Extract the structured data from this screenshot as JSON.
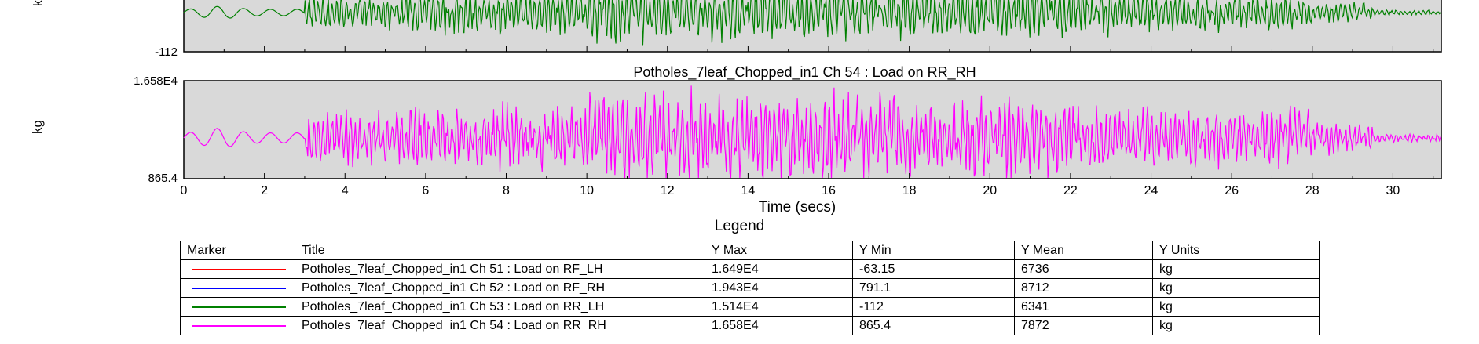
{
  "chart_data": [
    {
      "type": "line",
      "title": "",
      "ylabel": "kg",
      "ylim": [
        -112,
        null
      ],
      "ytick_labels": [
        "-112"
      ],
      "xlim": [
        0,
        31.2
      ],
      "series": [
        {
          "name": "Potholes_7leaf_Chopped_in1  Ch 53 : Load on RR_LH",
          "color": "#008000"
        }
      ]
    },
    {
      "type": "line",
      "title": "Potholes_7leaf_Chopped_in1  Ch 54 : Load on RR_RH",
      "xlabel": "Time (secs)",
      "ylabel": "kg",
      "ylim": [
        865.4,
        16580
      ],
      "ytick_labels": [
        "1.658E4",
        "865.4"
      ],
      "xlim": [
        0,
        31.2
      ],
      "xticks": [
        0,
        2,
        4,
        6,
        8,
        10,
        12,
        14,
        16,
        18,
        20,
        22,
        24,
        26,
        28,
        30
      ],
      "series": [
        {
          "name": "Potholes_7leaf_Chopped_in1  Ch 54 : Load on RR_RH",
          "color": "#ff00ff"
        }
      ]
    }
  ],
  "legend": {
    "title": "Legend",
    "headers": [
      "Marker",
      "Title",
      "Y Max",
      "Y Min",
      "Y Mean",
      "Y Units"
    ],
    "rows": [
      {
        "color": "#ff0000",
        "title": "Potholes_7leaf_Chopped_in1  Ch 51 : Load on RF_LH",
        "ymax": "1.649E4",
        "ymin": "-63.15",
        "ymean": "6736",
        "units": "kg"
      },
      {
        "color": "#0000ff",
        "title": "Potholes_7leaf_Chopped_in1  Ch 52 : Load on RF_RH",
        "ymax": "1.943E4",
        "ymin": "791.1",
        "ymean": "8712",
        "units": "kg"
      },
      {
        "color": "#008000",
        "title": "Potholes_7leaf_Chopped_in1  Ch 53 : Load on RR_LH",
        "ymax": "1.514E4",
        "ymin": "-112",
        "ymean": "6341",
        "units": "kg"
      },
      {
        "color": "#ff00ff",
        "title": "Potholes_7leaf_Chopped_in1  Ch 54 : Load on RR_RH",
        "ymax": "1.658E4",
        "ymin": "865.4",
        "ymean": "7872",
        "units": "kg"
      }
    ]
  }
}
